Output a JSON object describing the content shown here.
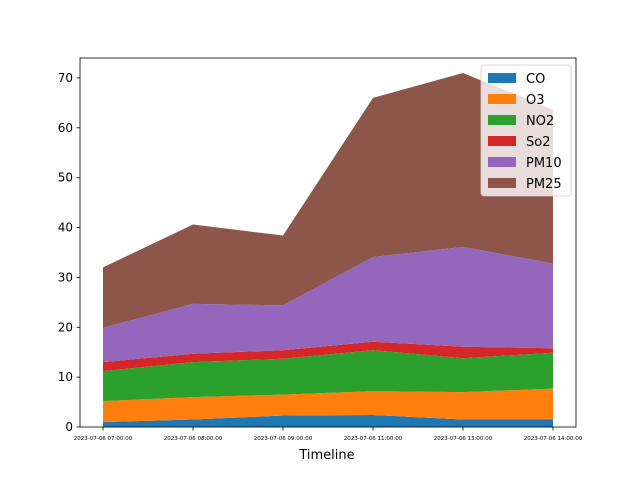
{
  "chart_data": {
    "type": "area",
    "stacked": true,
    "title": "",
    "xlabel": "Timeline",
    "ylabel": "",
    "categories": [
      "2023-07-06 07:00:00",
      "2023-07-06 08:00:00",
      "2023-07-06 09:00:00",
      "2023-07-06 11:00:00",
      "2023-07-06 13:00:00",
      "2023-07-06 14:00:00"
    ],
    "ylim": [
      0,
      74
    ],
    "yticks": [
      0,
      10,
      20,
      30,
      40,
      50,
      60,
      70
    ],
    "grid": false,
    "legend_position": "upper right",
    "series": [
      {
        "name": "CO",
        "color": "#1f77b4",
        "values": [
          1.0,
          1.5,
          2.3,
          2.4,
          1.5,
          1.5
        ]
      },
      {
        "name": "O3",
        "color": "#ff7f0e",
        "values": [
          4.2,
          4.5,
          4.2,
          4.8,
          5.5,
          6.2
        ]
      },
      {
        "name": "NO2",
        "color": "#2ca02c",
        "values": [
          6.0,
          7.0,
          7.2,
          8.2,
          6.8,
          7.2
        ]
      },
      {
        "name": "So2",
        "color": "#d62728",
        "values": [
          1.8,
          1.7,
          1.7,
          1.7,
          2.3,
          0.9
        ]
      },
      {
        "name": "PM10",
        "color": "#9467bd",
        "values": [
          6.9,
          10.0,
          9.0,
          17.0,
          20.0,
          17.0
        ]
      },
      {
        "name": "PM25",
        "color": "#8c564b",
        "values": [
          12.1,
          15.9,
          14.0,
          31.9,
          34.9,
          30.8
        ]
      }
    ]
  }
}
